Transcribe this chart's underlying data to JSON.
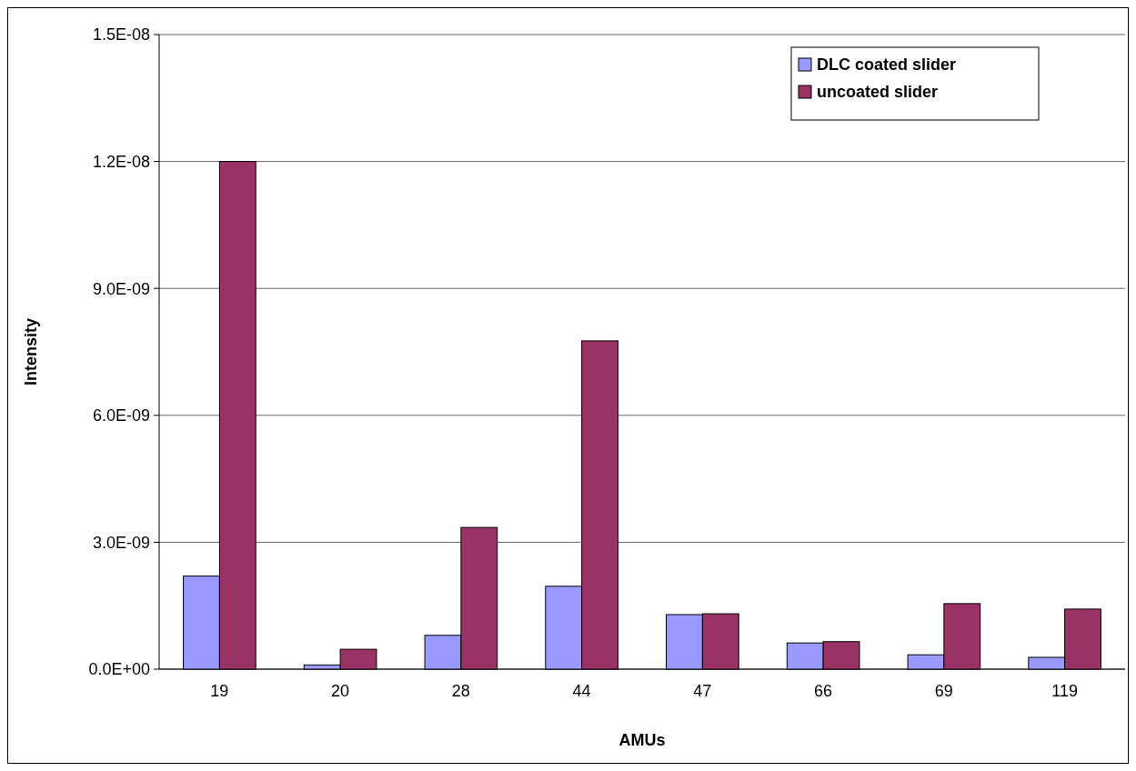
{
  "chart_data": {
    "type": "bar",
    "xlabel": "AMUs",
    "ylabel": "Intensity",
    "categories": [
      "19",
      "20",
      "28",
      "44",
      "47",
      "66",
      "69",
      "119"
    ],
    "series": [
      {
        "name": "DLC coated slider",
        "color": "#9999ff",
        "values": [
          2.2e-09,
          1e-10,
          8e-10,
          1.96e-09,
          1.29e-09,
          6.2e-10,
          3.4e-10,
          2.8e-10
        ]
      },
      {
        "name": "uncoated slider",
        "color": "#993366",
        "values": [
          1.2e-08,
          4.7e-10,
          3.35e-09,
          7.76e-09,
          1.31e-09,
          6.5e-10,
          1.55e-09,
          1.42e-09
        ]
      }
    ],
    "ylim": [
      0,
      1.5e-08
    ],
    "yticks": [
      {
        "value": 0,
        "label": "0.0E+00"
      },
      {
        "value": 3e-09,
        "label": "3.0E-09"
      },
      {
        "value": 6e-09,
        "label": "6.0E-09"
      },
      {
        "value": 9e-09,
        "label": "9.0E-09"
      },
      {
        "value": 1.2e-08,
        "label": "1.2E-08"
      },
      {
        "value": 1.5e-08,
        "label": "1.5E-08"
      }
    ],
    "grid": "y",
    "legend": "top right"
  }
}
